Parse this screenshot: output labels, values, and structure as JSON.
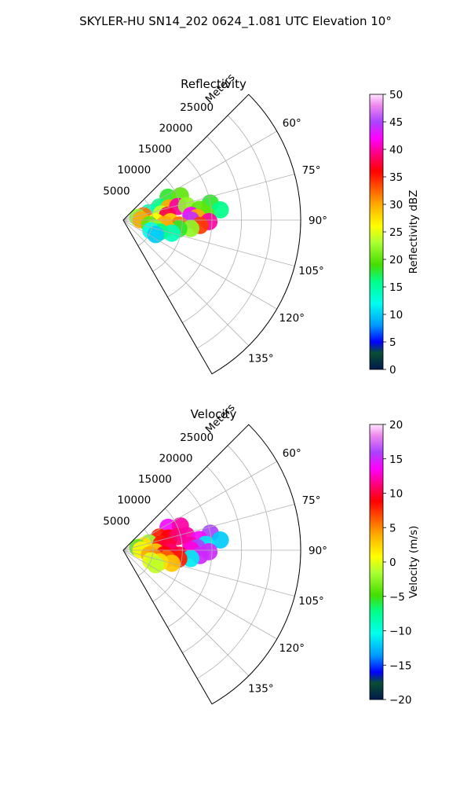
{
  "title": "SKYLER-HU  SN14_202  0624_1.081 UTC Elevation 10°",
  "chart_data": [
    {
      "type": "heatmap",
      "subtype": "polar-sector",
      "title": "Reflectivity",
      "range_label": "Meters",
      "range_ticks": [
        5000,
        10000,
        15000,
        20000,
        25000
      ],
      "range_tick_labels": [
        "5000",
        "10000",
        "15000",
        "20000",
        "25000"
      ],
      "range_max": 30000,
      "azimuth_range": [
        45,
        150
      ],
      "azimuth_ticks": [
        60,
        75,
        90,
        105,
        120,
        135
      ],
      "azimuth_tick_labels": [
        "60°",
        "75°",
        "90°",
        "105°",
        "120°",
        "135°"
      ],
      "grid": true,
      "colorbar": {
        "label": "Reflectivity dBZ",
        "range": [
          0,
          50
        ],
        "ticks": [
          0,
          5,
          10,
          15,
          20,
          25,
          30,
          35,
          40,
          45,
          50
        ],
        "tick_labels": [
          "0",
          "5",
          "10",
          "15",
          "20",
          "25",
          "30",
          "35",
          "40",
          "45",
          "50"
        ]
      },
      "echo_cells": [
        {
          "az": 63,
          "r": 8500,
          "value": 18
        },
        {
          "az": 67,
          "r": 10500,
          "value": 20
        },
        {
          "az": 70,
          "r": 6500,
          "value": 16
        },
        {
          "az": 74,
          "r": 4500,
          "value": 14
        },
        {
          "az": 75,
          "r": 8000,
          "value": 30
        },
        {
          "az": 76,
          "r": 9500,
          "value": 40
        },
        {
          "az": 77,
          "r": 11000,
          "value": 22
        },
        {
          "az": 78,
          "r": 3500,
          "value": 32
        },
        {
          "az": 79,
          "r": 15000,
          "value": 18
        },
        {
          "az": 80,
          "r": 2500,
          "value": 22
        },
        {
          "az": 81,
          "r": 6500,
          "value": 24
        },
        {
          "az": 82,
          "r": 13000,
          "value": 20
        },
        {
          "az": 84,
          "r": 7500,
          "value": 38
        },
        {
          "az": 84,
          "r": 16500,
          "value": 16
        },
        {
          "az": 86,
          "r": 11500,
          "value": 42
        },
        {
          "az": 86,
          "r": 14000,
          "value": 20
        },
        {
          "az": 88,
          "r": 12500,
          "value": 30
        },
        {
          "az": 89,
          "r": 3000,
          "value": 30
        },
        {
          "az": 90,
          "r": 11500,
          "value": 44
        },
        {
          "az": 91,
          "r": 14500,
          "value": 40
        },
        {
          "az": 92,
          "r": 8000,
          "value": 28
        },
        {
          "az": 93,
          "r": 5500,
          "value": 26
        },
        {
          "az": 94,
          "r": 13000,
          "value": 34
        },
        {
          "az": 95,
          "r": 9500,
          "value": 32
        },
        {
          "az": 96,
          "r": 7000,
          "value": 30
        },
        {
          "az": 97,
          "r": 11500,
          "value": 22
        },
        {
          "az": 99,
          "r": 9500,
          "value": 18
        },
        {
          "az": 100,
          "r": 4500,
          "value": 20
        },
        {
          "az": 101,
          "r": 7500,
          "value": 30
        },
        {
          "az": 104,
          "r": 5500,
          "value": 22
        },
        {
          "az": 105,
          "r": 8500,
          "value": 14
        },
        {
          "az": 108,
          "r": 6500,
          "value": 16
        },
        {
          "az": 111,
          "r": 5000,
          "value": 12
        },
        {
          "az": 114,
          "r": 6000,
          "value": 10
        }
      ]
    },
    {
      "type": "heatmap",
      "subtype": "polar-sector",
      "title": "Velocity",
      "range_label": "Meters",
      "range_ticks": [
        5000,
        10000,
        15000,
        20000,
        25000
      ],
      "range_tick_labels": [
        "5000",
        "10000",
        "15000",
        "20000",
        "25000"
      ],
      "range_max": 30000,
      "azimuth_range": [
        45,
        150
      ],
      "azimuth_ticks": [
        60,
        75,
        90,
        105,
        120,
        135
      ],
      "azimuth_tick_labels": [
        "60°",
        "75°",
        "90°",
        "105°",
        "120°",
        "135°"
      ],
      "grid": true,
      "colorbar": {
        "label": "Velocity (m/s)",
        "range": [
          -20,
          20
        ],
        "ticks": [
          -20,
          -15,
          -10,
          -5,
          0,
          5,
          10,
          15,
          20
        ],
        "tick_labels": [
          "−20",
          "−15",
          "−10",
          "−5",
          "0",
          "5",
          "10",
          "15",
          "20"
        ]
      },
      "echo_cells": [
        {
          "az": 63,
          "r": 8500,
          "value": 14
        },
        {
          "az": 67,
          "r": 10500,
          "value": 12
        },
        {
          "az": 70,
          "r": 6500,
          "value": 8
        },
        {
          "az": 74,
          "r": 4500,
          "value": -2
        },
        {
          "az": 75,
          "r": 8000,
          "value": 9
        },
        {
          "az": 76,
          "r": 9500,
          "value": 11
        },
        {
          "az": 77,
          "r": 11000,
          "value": 12
        },
        {
          "az": 78,
          "r": 3500,
          "value": 2
        },
        {
          "az": 79,
          "r": 15000,
          "value": 16
        },
        {
          "az": 80,
          "r": 2500,
          "value": -4
        },
        {
          "az": 81,
          "r": 6500,
          "value": 8
        },
        {
          "az": 82,
          "r": 13000,
          "value": 14
        },
        {
          "az": 84,
          "r": 7500,
          "value": 10
        },
        {
          "az": 84,
          "r": 16500,
          "value": -12
        },
        {
          "az": 86,
          "r": 11500,
          "value": 12
        },
        {
          "az": 86,
          "r": 14000,
          "value": -11
        },
        {
          "az": 88,
          "r": 12500,
          "value": 16
        },
        {
          "az": 89,
          "r": 3000,
          "value": 1
        },
        {
          "az": 90,
          "r": 11500,
          "value": 13
        },
        {
          "az": 91,
          "r": 14500,
          "value": 15
        },
        {
          "az": 92,
          "r": 8000,
          "value": 11
        },
        {
          "az": 93,
          "r": 5500,
          "value": 3
        },
        {
          "az": 94,
          "r": 13000,
          "value": 15
        },
        {
          "az": 95,
          "r": 9500,
          "value": 10
        },
        {
          "az": 96,
          "r": 7000,
          "value": 9
        },
        {
          "az": 97,
          "r": 11500,
          "value": -11
        },
        {
          "az": 99,
          "r": 9500,
          "value": 8
        },
        {
          "az": 100,
          "r": 4500,
          "value": 4
        },
        {
          "az": 101,
          "r": 7500,
          "value": 6
        },
        {
          "az": 104,
          "r": 5500,
          "value": 5
        },
        {
          "az": 105,
          "r": 8500,
          "value": 3
        },
        {
          "az": 108,
          "r": 6500,
          "value": 2
        },
        {
          "az": 111,
          "r": 5000,
          "value": 0
        },
        {
          "az": 114,
          "r": 6000,
          "value": -1
        }
      ]
    }
  ]
}
